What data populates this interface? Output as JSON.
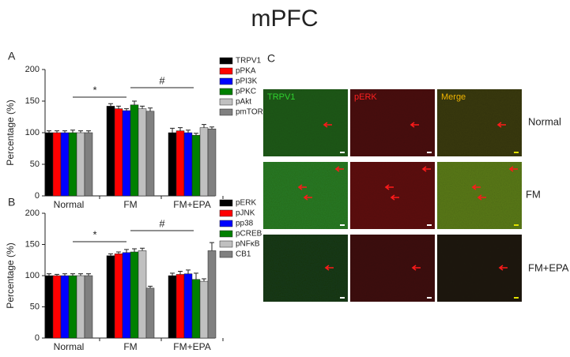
{
  "title": "mPFC",
  "chart_data": [
    {
      "type": "bar",
      "panel": "A",
      "ylabel": "Percentage (%)",
      "categories": [
        "Normal",
        "FM",
        "FM+EPA"
      ],
      "series": [
        {
          "name": "TRPV1",
          "color": "#000000",
          "values": [
            100,
            142,
            100
          ],
          "errors": [
            3,
            4,
            7
          ]
        },
        {
          "name": "pPKA",
          "color": "#ff0000",
          "values": [
            100,
            138,
            103
          ],
          "errors": [
            3,
            4,
            5
          ]
        },
        {
          "name": "pPI3K",
          "color": "#0000ff",
          "values": [
            100,
            135,
            100
          ],
          "errors": [
            3,
            3,
            4
          ]
        },
        {
          "name": "pPKC",
          "color": "#008000",
          "values": [
            100,
            144,
            96
          ],
          "errors": [
            4,
            6,
            3
          ]
        },
        {
          "name": "pAkt",
          "color": "#c0c0c0",
          "values": [
            100,
            138,
            108
          ],
          "errors": [
            3,
            4,
            5
          ]
        },
        {
          "name": "pmTOR",
          "color": "#808080",
          "values": [
            100,
            134,
            106
          ],
          "errors": [
            3,
            5,
            3
          ]
        }
      ],
      "annotations": [
        "*",
        "#"
      ],
      "ylim": [
        0,
        200
      ],
      "yticks": [
        0,
        50,
        100,
        150,
        200
      ]
    },
    {
      "type": "bar",
      "panel": "B",
      "ylabel": "Percentage (%)",
      "categories": [
        "Normal",
        "FM",
        "FM+EPA"
      ],
      "series": [
        {
          "name": "pERK",
          "color": "#000000",
          "values": [
            100,
            132,
            100
          ],
          "errors": [
            3,
            3,
            4
          ]
        },
        {
          "name": "pJNK",
          "color": "#ff0000",
          "values": [
            100,
            135,
            102
          ],
          "errors": [
            2,
            3,
            5
          ]
        },
        {
          "name": "pp38",
          "color": "#0000ff",
          "values": [
            100,
            137,
            103
          ],
          "errors": [
            3,
            5,
            6
          ]
        },
        {
          "name": "pCREB",
          "color": "#008000",
          "values": [
            100,
            138,
            94
          ],
          "errors": [
            3,
            5,
            10
          ]
        },
        {
          "name": "pNFκB",
          "color": "#c0c0c0",
          "values": [
            100,
            140,
            91
          ],
          "errors": [
            3,
            4,
            4
          ]
        },
        {
          "name": "CB1",
          "color": "#808080",
          "values": [
            100,
            80,
            140
          ],
          "errors": [
            3,
            3,
            13
          ]
        }
      ],
      "annotations": [
        "*",
        "#"
      ],
      "ylim": [
        0,
        200
      ],
      "yticks": [
        0,
        50,
        100,
        150,
        200
      ]
    }
  ],
  "panel_c": {
    "label": "C",
    "columns": [
      "TRPV1",
      "pERK",
      "Merge"
    ],
    "rows": [
      "Normal",
      "FM",
      "FM+EPA"
    ]
  }
}
